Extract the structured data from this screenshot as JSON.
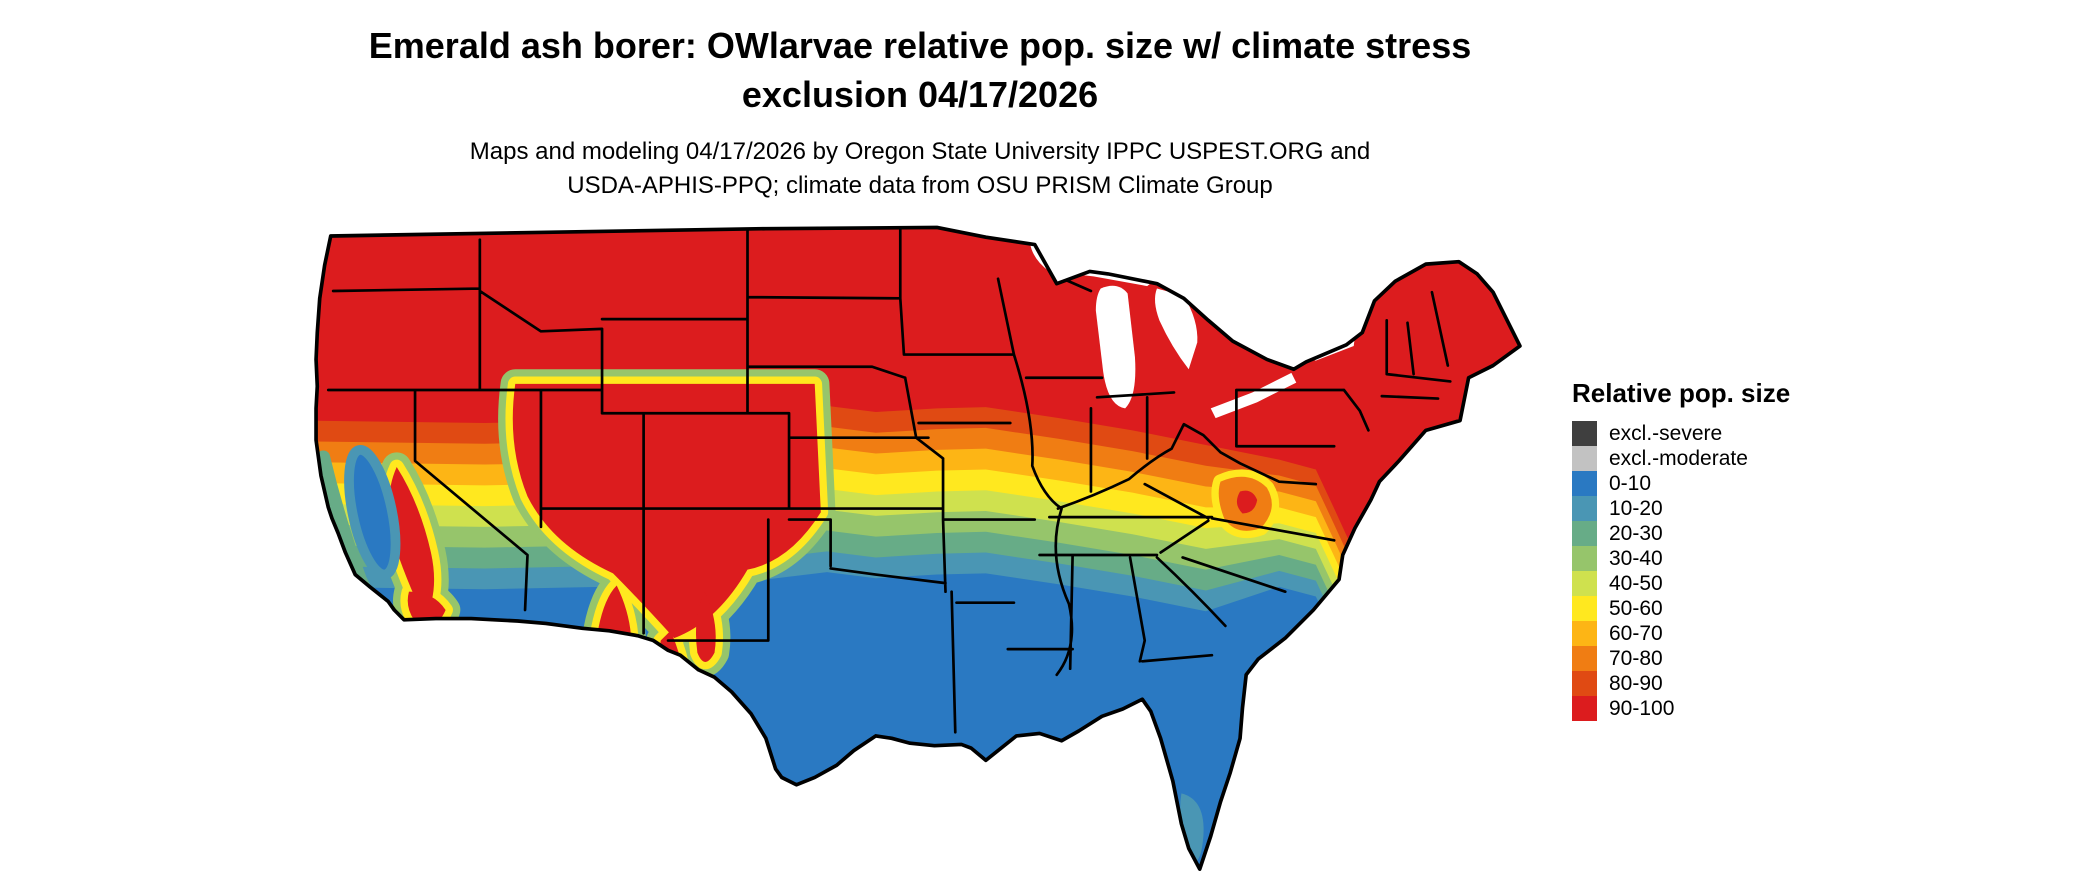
{
  "header": {
    "title_line1": "Emerald ash borer: OWlarvae relative pop. size w/ climate stress",
    "title_line2": "exclusion 04/17/2026",
    "subtitle_line1": "Maps and modeling 04/17/2026 by Oregon State University IPPC USPEST.ORG and",
    "subtitle_line2": "USDA-APHIS-PPQ; climate data from OSU PRISM Climate Group"
  },
  "legend": {
    "title": "Relative pop. size",
    "entries": [
      {
        "label": "excl.-severe",
        "color": "#3f3f3f"
      },
      {
        "label": "excl.-moderate",
        "color": "#c2c2c2"
      },
      {
        "label": "0-10",
        "color": "#2a79c2"
      },
      {
        "label": "10-20",
        "color": "#4a96b4"
      },
      {
        "label": "20-30",
        "color": "#67ac87"
      },
      {
        "label": "30-40",
        "color": "#96c56b"
      },
      {
        "label": "40-50",
        "color": "#cfe14e"
      },
      {
        "label": "50-60",
        "color": "#ffe81f"
      },
      {
        "label": "60-70",
        "color": "#fdb515"
      },
      {
        "label": "70-80",
        "color": "#f07d13"
      },
      {
        "label": "80-90",
        "color": "#e04a13"
      },
      {
        "label": "90-100",
        "color": "#dc1c1e"
      }
    ]
  },
  "map": {
    "water_color": "#ffffff",
    "border_color": "#000000"
  }
}
